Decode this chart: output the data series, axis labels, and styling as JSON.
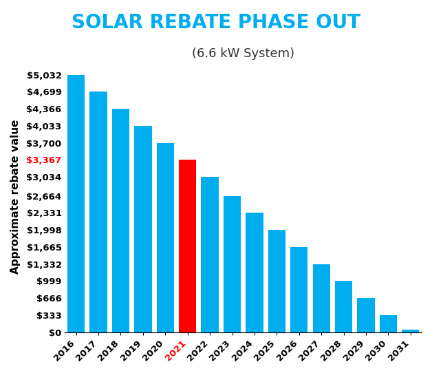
{
  "title": "SOLAR REBATE PHASE OUT",
  "subtitle": "(6.6 kW System)",
  "ylabel": "Approximate rebate value",
  "years": [
    "2016",
    "2017",
    "2018",
    "2019",
    "2020",
    "2021",
    "2022",
    "2023",
    "2024",
    "2025",
    "2026",
    "2027",
    "2028",
    "2029",
    "2030",
    "2031"
  ],
  "values": [
    5032,
    4699,
    4366,
    4033,
    3700,
    3367,
    3034,
    2664,
    2331,
    1998,
    1665,
    1332,
    999,
    666,
    333,
    50
  ],
  "bar_colors": [
    "#00AEEF",
    "#00AEEF",
    "#00AEEF",
    "#00AEEF",
    "#00AEEF",
    "#FF0000",
    "#00AEEF",
    "#00AEEF",
    "#00AEEF",
    "#00AEEF",
    "#00AEEF",
    "#00AEEF",
    "#00AEEF",
    "#00AEEF",
    "#00AEEF",
    "#00AEEF"
  ],
  "highlight_year": "2021",
  "highlight_color": "#FF0000",
  "custom_yticks": [
    0,
    333,
    666,
    999,
    1332,
    1665,
    1998,
    2331,
    2664,
    3034,
    3367,
    3700,
    4033,
    4366,
    4699,
    5032
  ],
  "custom_ylabels": [
    "$0",
    "$333",
    "$666",
    "$999",
    "$1,332",
    "$1,665",
    "$1,998",
    "$2,331",
    "$2,664",
    "$3,034",
    "$3,367",
    "$3,700",
    "$4,033",
    "$4,366",
    "$4,699",
    "$5,032"
  ],
  "highlight_ytick": "$3,367",
  "title_color": "#00AEEF",
  "subtitle_color": "#333333",
  "background_color": "#FFFFFF",
  "title_fontsize": 20,
  "subtitle_fontsize": 13,
  "ylabel_fontsize": 11,
  "tick_fontsize": 9.5,
  "ylim": [
    0,
    5300
  ],
  "bar_width": 0.78
}
